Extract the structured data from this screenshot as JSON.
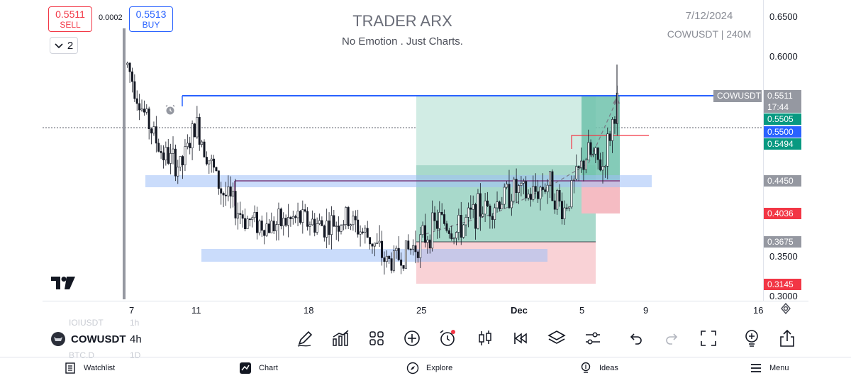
{
  "header": {
    "title": "TRADER ARX",
    "subtitle": "No Emotion . Just Charts.",
    "date": "7/12/2024",
    "symbol_interval": "COWUSDT | 240M"
  },
  "trade": {
    "sell_price": "0.5511",
    "sell_label": "SELL",
    "spread": "0.0002",
    "buy_price": "0.5513",
    "buy_label": "BUY",
    "layout_count": "2"
  },
  "price_scale": {
    "ticks": [
      "0.6500",
      "0.6000",
      "0.3500",
      "0.3000"
    ],
    "labels": {
      "last_price": "0.5511",
      "countdown": "17:44",
      "target": "0.5505",
      "crosshair": "0.5500",
      "entry": "0.5494",
      "level_mid": "0.4450",
      "stop_1": "0.4036",
      "level_low": "0.3675",
      "stop_2": "0.3145"
    },
    "symbol_tag": "COWUSDT"
  },
  "time_axis": {
    "ticks": [
      "7",
      "11",
      "18",
      "25",
      "Dec",
      "5",
      "9",
      "16"
    ]
  },
  "symbol_bar": {
    "ghost_above": "IOIUSDT",
    "ghost_above_tf": "1h",
    "symbol": "COWUSDT",
    "interval": "4h",
    "ghost_below": "BTC.D",
    "ghost_below_tf": "1D"
  },
  "toolbar": {
    "tools": [
      "pencil-icon",
      "indicators-icon",
      "grid-icon",
      "plus-icon",
      "alarm-icon",
      "candles-icon",
      "replay-icon",
      "layers-icon",
      "settings-sliders-icon",
      "undo-icon",
      "redo-icon",
      "fullscreen-icon",
      "bulb-plus-icon",
      "share-icon"
    ]
  },
  "bottom_nav": {
    "watchlist": "Watchlist",
    "chart": "Chart",
    "explore": "Explore",
    "ideas": "Ideas",
    "menu": "Menu"
  },
  "colors": {
    "up": "#ffffff",
    "down": "#131722",
    "resistance_line": "#2962ff",
    "zone_blue": "#9fc0f7",
    "target_fill": "#d1ece4",
    "target_fill_dark": "#9ad3c3",
    "stop_fill": "#f9d2d6",
    "label_green": "#089981",
    "label_blue": "#2962ff",
    "label_red": "#f23645",
    "label_gray": "#9598a1"
  },
  "chart_data": {
    "type": "candlestick",
    "symbol": "COWUSDT",
    "interval": "4h",
    "ylim": [
      0.285,
      0.665
    ],
    "x_ticks": [
      "7",
      "11",
      "18",
      "25",
      "Dec",
      "5",
      "9",
      "16"
    ],
    "last_price": 0.5511,
    "path_anchors": [
      {
        "t": 0.0,
        "price": 0.6
      },
      {
        "t": 0.03,
        "price": 0.54
      },
      {
        "t": 0.07,
        "price": 0.48
      },
      {
        "t": 0.11,
        "price": 0.46
      },
      {
        "t": 0.14,
        "price": 0.52
      },
      {
        "t": 0.19,
        "price": 0.43
      },
      {
        "t": 0.24,
        "price": 0.39
      },
      {
        "t": 0.29,
        "price": 0.38
      },
      {
        "t": 0.35,
        "price": 0.39
      },
      {
        "t": 0.4,
        "price": 0.38
      },
      {
        "t": 0.45,
        "price": 0.39
      },
      {
        "t": 0.5,
        "price": 0.36
      },
      {
        "t": 0.53,
        "price": 0.33
      },
      {
        "t": 0.56,
        "price": 0.34
      },
      {
        "t": 0.6,
        "price": 0.36
      },
      {
        "t": 0.64,
        "price": 0.39
      },
      {
        "t": 0.67,
        "price": 0.37
      },
      {
        "t": 0.71,
        "price": 0.4
      },
      {
        "t": 0.75,
        "price": 0.41
      },
      {
        "t": 0.79,
        "price": 0.43
      },
      {
        "t": 0.82,
        "price": 0.42
      },
      {
        "t": 0.86,
        "price": 0.44
      },
      {
        "t": 0.89,
        "price": 0.4
      },
      {
        "t": 0.92,
        "price": 0.45
      },
      {
        "t": 0.94,
        "price": 0.48
      },
      {
        "t": 0.97,
        "price": 0.46
      },
      {
        "t": 1.0,
        "price": 0.55
      }
    ]
  }
}
